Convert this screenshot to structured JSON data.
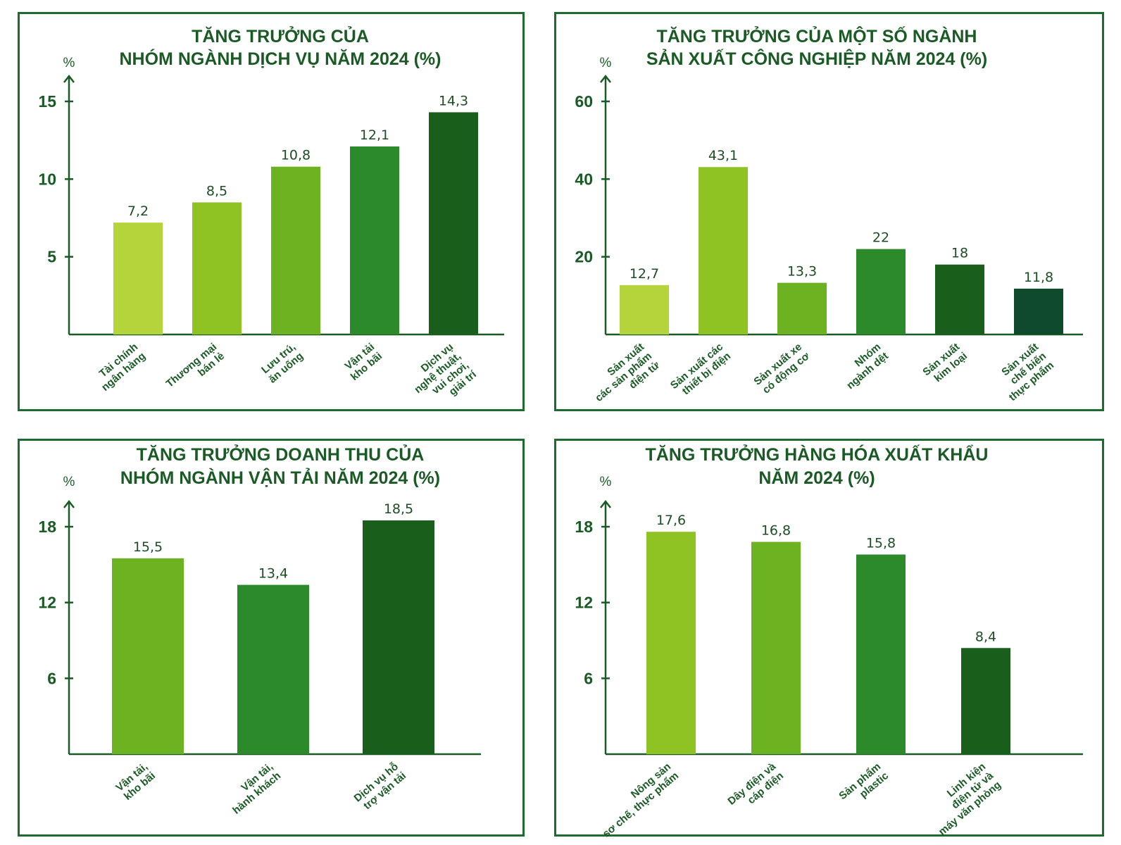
{
  "chart_data": [
    {
      "type": "bar",
      "title": [
        "TĂNG TRƯỞNG CỦA",
        "NHÓM NGÀNH DỊCH VỤ NĂM 2024 (%)"
      ],
      "ylabel": "%",
      "yticks": [
        "5",
        "10",
        "15"
      ],
      "tick_values": [
        5,
        10,
        15
      ],
      "ylim": [
        0,
        15
      ],
      "categories": [
        [
          "Tài chính",
          "ngân hàng"
        ],
        [
          "Thương mại",
          "bán lẻ"
        ],
        [
          "Lưu trú,",
          "ăn uống"
        ],
        [
          "Vận tải",
          "kho bãi"
        ],
        [
          "Dịch vụ",
          "nghệ thuật,",
          "vui chơi,",
          "giải trí"
        ]
      ],
      "values": [
        7.2,
        8.5,
        10.8,
        12.1,
        14.3
      ],
      "value_labels": [
        "7,2",
        "8,5",
        "10,8",
        "12,1",
        "14,3"
      ],
      "colors": [
        "#b5d43b",
        "#8fc223",
        "#6db220",
        "#2d8a2b",
        "#195f1b"
      ]
    },
    {
      "type": "bar",
      "title": [
        "TĂNG TRƯỞNG CỦA MỘT SỐ NGÀNH",
        "SẢN XUẤT CÔNG NGHIỆP NĂM 2024 (%)"
      ],
      "ylabel": "%",
      "yticks": [
        "20",
        "40",
        "60"
      ],
      "tick_values": [
        20,
        40,
        60
      ],
      "ylim": [
        0,
        60
      ],
      "categories": [
        [
          "Sản xuất",
          "các sản phẩm",
          "điện tử"
        ],
        [
          "Sản xuất các",
          "thiết bị điện"
        ],
        [
          "Sản xuất xe",
          "có động cơ"
        ],
        [
          "Nhóm",
          "ngành dệt"
        ],
        [
          "Sản xuất",
          "kim loại"
        ],
        [
          "Sản xuất",
          "chế biến",
          "thực phẩm"
        ]
      ],
      "values": [
        12.7,
        43.1,
        13.3,
        22,
        18,
        11.8
      ],
      "value_labels": [
        "12,7",
        "43,1",
        "13,3",
        "22",
        "18",
        "11,8"
      ],
      "colors": [
        "#b5d43b",
        "#8fc223",
        "#6db220",
        "#2d8a2b",
        "#195f1b",
        "#0e4a2b"
      ]
    },
    {
      "type": "bar",
      "title": [
        "TĂNG TRƯỞNG DOANH THU CỦA",
        "NHÓM NGÀNH VẬN TẢI NĂM 2024 (%)"
      ],
      "ylabel": "%",
      "yticks": [
        "6",
        "12",
        "18"
      ],
      "tick_values": [
        6,
        12,
        18
      ],
      "ylim": [
        0,
        18
      ],
      "categories": [
        [
          "Vận tải,",
          "kho bãi"
        ],
        [
          "Vận tải,",
          "hành khách"
        ],
        [
          "Dịch vụ hỗ",
          "trợ vận tải"
        ]
      ],
      "values": [
        15.5,
        13.4,
        18.5
      ],
      "value_labels": [
        "15,5",
        "13,4",
        "18,5"
      ],
      "colors": [
        "#6db220",
        "#2d8a2b",
        "#195f1b"
      ]
    },
    {
      "type": "bar",
      "title": [
        "TĂNG TRƯỞNG HÀNG HÓA XUẤT KHẨU",
        "NĂM 2024 (%)"
      ],
      "ylabel": "%",
      "yticks": [
        "6",
        "12",
        "18"
      ],
      "tick_values": [
        6,
        12,
        18
      ],
      "ylim": [
        0,
        18
      ],
      "categories": [
        [
          "Nông sản",
          "sơ chế, thực phẩm"
        ],
        [
          "Dây điện và",
          "cáp điện"
        ],
        [
          "Sản phẩm",
          "plastic"
        ],
        [
          "Linh kiện",
          "điện tử và",
          "máy văn phòng"
        ]
      ],
      "values": [
        17.6,
        16.8,
        15.8,
        8.4
      ],
      "value_labels": [
        "17,6",
        "16,8",
        "15,8",
        "8,4"
      ],
      "colors": [
        "#8fc223",
        "#6db220",
        "#2d8a2b",
        "#195f1b"
      ]
    }
  ]
}
